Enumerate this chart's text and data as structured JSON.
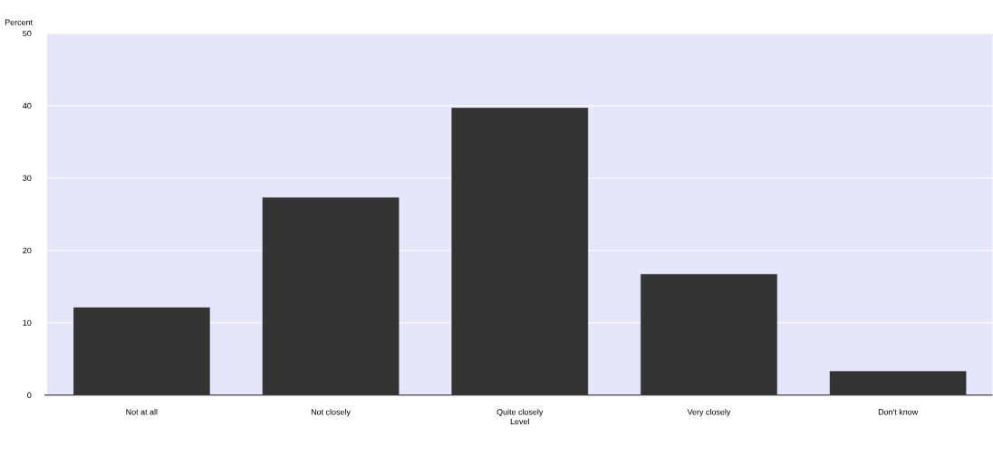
{
  "chart_data": {
    "type": "bar",
    "xlabel": "Level",
    "ylabel": "Percent",
    "categories": [
      "Not at all",
      "Not closely",
      "Quite closely",
      "Very closely",
      "Don't know"
    ],
    "values": [
      12.1,
      27.3,
      39.7,
      16.7,
      3.3
    ],
    "color": "#333333",
    "ylim": [
      0,
      50
    ],
    "yticks": [
      0,
      10,
      20,
      30,
      40,
      50
    ],
    "grid": "y"
  }
}
